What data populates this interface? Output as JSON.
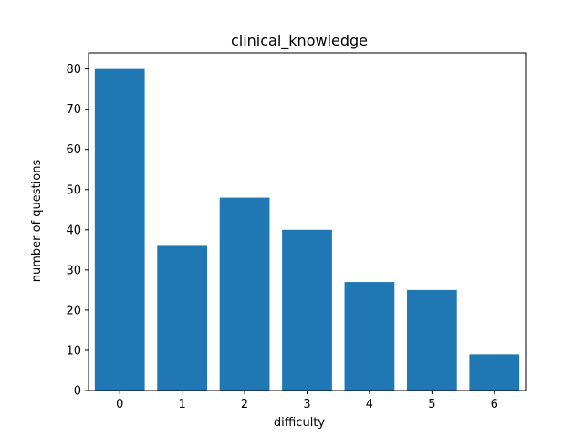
{
  "chart_data": {
    "type": "bar",
    "title": "clinical_knowledge",
    "xlabel": "difficulty",
    "ylabel": "number of questions",
    "categories": [
      "0",
      "1",
      "2",
      "3",
      "4",
      "5",
      "6"
    ],
    "values": [
      80,
      36,
      48,
      40,
      27,
      25,
      9
    ],
    "ylim": [
      0,
      84
    ],
    "xlim": [
      -0.5,
      6.5
    ],
    "yticks": [
      0,
      10,
      20,
      30,
      40,
      50,
      60,
      70,
      80
    ],
    "grid": false,
    "legend": "none",
    "bar_color": "#1f77b4"
  }
}
